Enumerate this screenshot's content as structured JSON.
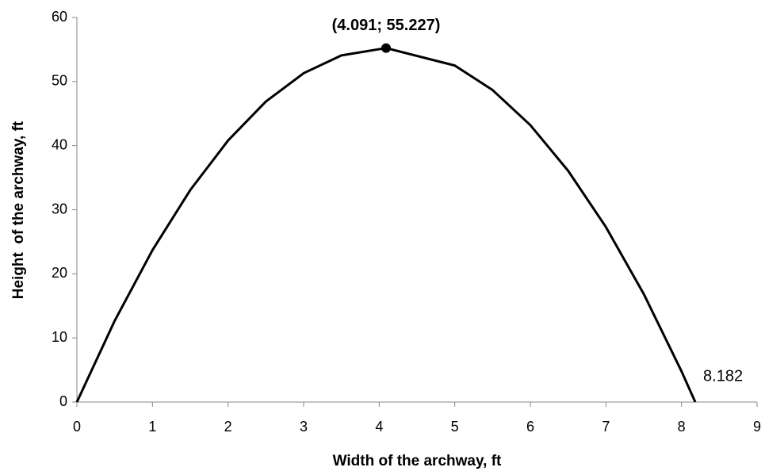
{
  "chart_data": {
    "type": "line",
    "xlabel": "Width of the archway, ft",
    "ylabel": "Height  of the archway, ft",
    "series": [
      {
        "color": "#000000",
        "x": [
          0,
          0.5,
          1,
          1.5,
          2,
          2.5,
          3,
          3.5,
          4.091,
          5,
          5.5,
          6,
          6.5,
          7,
          7.5,
          8,
          8.182
        ],
        "values": [
          0,
          12.675,
          23.7,
          33.075,
          40.8,
          46.875,
          51.3,
          54.075,
          55.227,
          52.5,
          48.675,
          43.2,
          36.075,
          27.3,
          16.875,
          4.8,
          0
        ]
      }
    ],
    "annotations": [
      {
        "text": "(4.091; 55.227)",
        "x": 4.091,
        "y": 55.227,
        "marker": true,
        "bold": true
      },
      {
        "text": "8.182",
        "x": 8.182,
        "y": 0,
        "marker": false,
        "bold": false
      }
    ],
    "xlim": [
      0,
      9
    ],
    "xticks": [
      0,
      1,
      2,
      3,
      4,
      5,
      6,
      7,
      8,
      9
    ],
    "ylim": [
      0,
      60
    ],
    "yticks": [
      0,
      10,
      20,
      30,
      40,
      50,
      60
    ],
    "grid": false
  }
}
